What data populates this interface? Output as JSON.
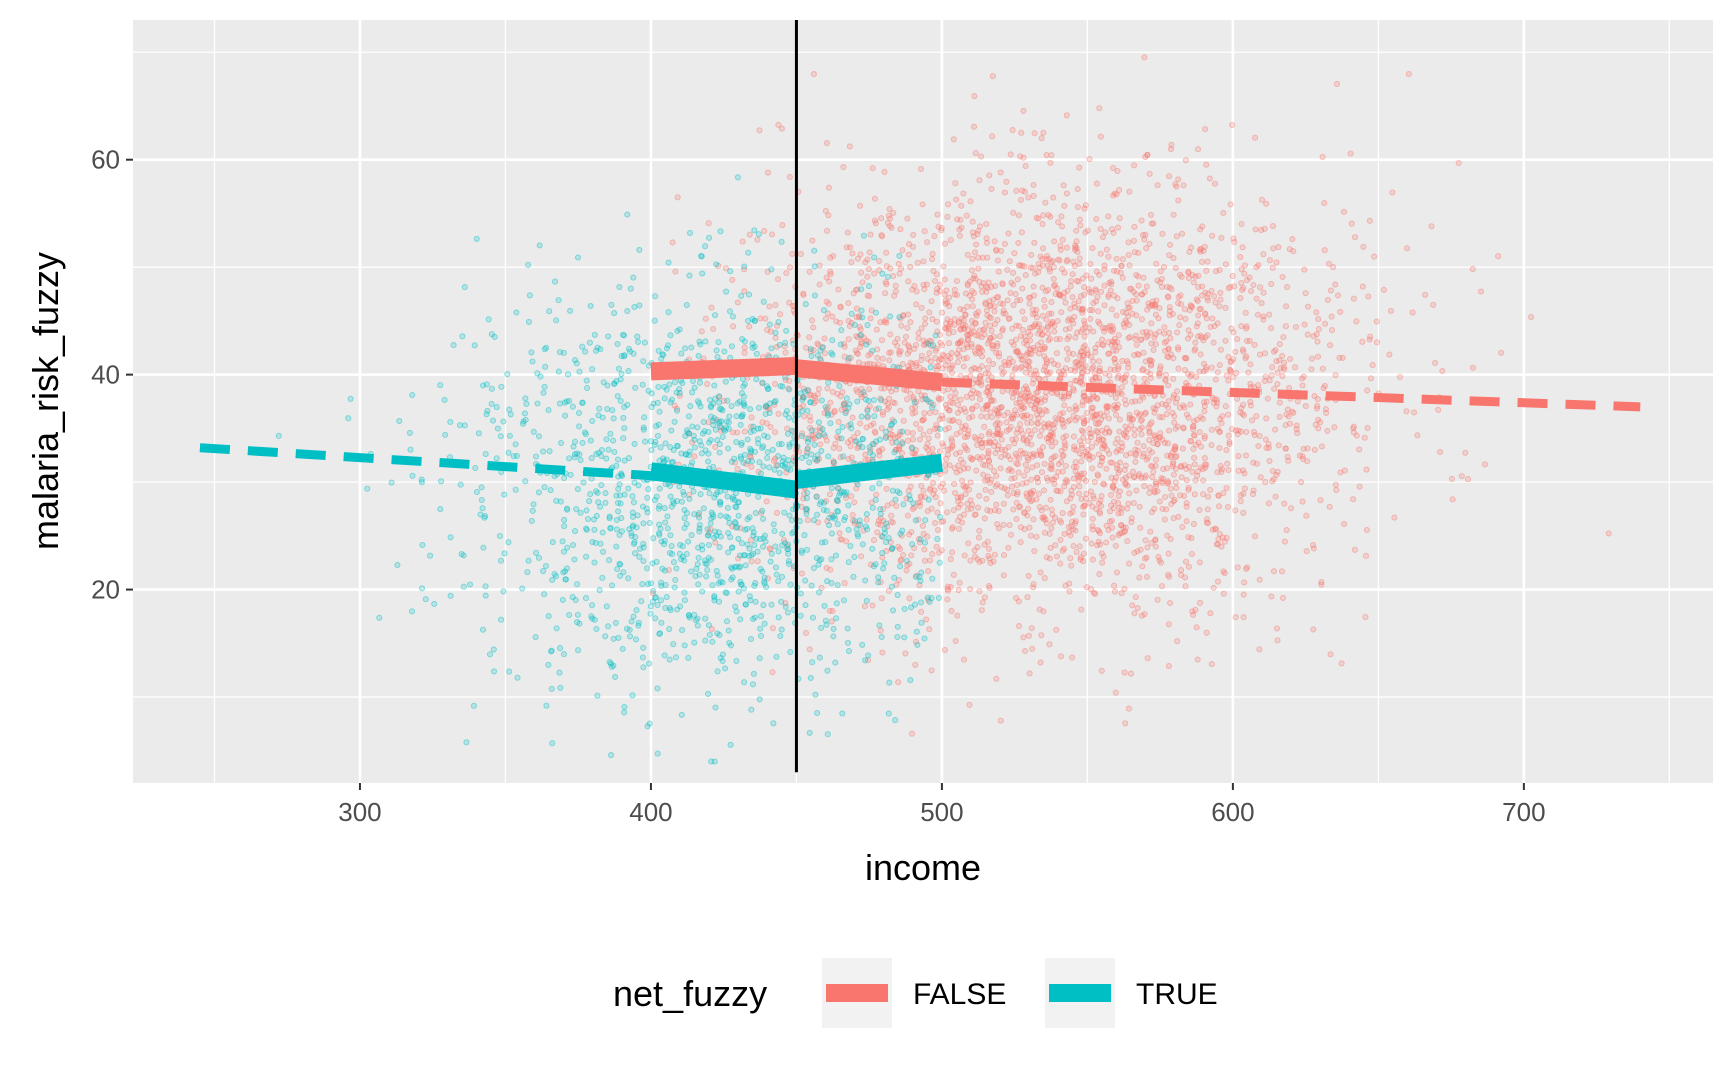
{
  "chart_data": {
    "type": "scatter",
    "xlabel": "income",
    "ylabel": "malaria_risk_fuzzy",
    "xlim": [
      222,
      765
    ],
    "ylim": [
      2,
      73
    ],
    "x_ticks": [
      300,
      400,
      500,
      600,
      700
    ],
    "x_tick_labels": [
      "300",
      "400",
      "500",
      "600",
      "700"
    ],
    "x_minor_ticks": [
      250,
      350,
      450,
      550,
      650,
      750
    ],
    "y_ticks": [
      20,
      40,
      60
    ],
    "y_tick_labels": [
      "20",
      "40",
      "60"
    ],
    "y_minor_ticks": [
      10,
      30,
      50,
      70
    ],
    "grid": true,
    "cutoff_x": 450,
    "legend": {
      "title": "net_fuzzy",
      "position": "bottom",
      "entries": [
        {
          "label": "FALSE",
          "color": "#F8766D"
        },
        {
          "label": "TRUE",
          "color": "#00BFC4"
        }
      ]
    },
    "series": [
      {
        "name": "FALSE",
        "color": "#F8766D",
        "point_cloud": {
          "x_mean": 535,
          "x_sd": 52,
          "x_min": 400,
          "x_max": 740,
          "y_mean": 38,
          "y_sd": 9.5,
          "count": 3400
        },
        "fit_solid": [
          {
            "x": [
              400,
              450
            ],
            "y": [
              40.3,
              40.8
            ]
          },
          {
            "x": [
              450,
              500
            ],
            "y": [
              40.6,
              39.3
            ]
          }
        ],
        "fit_dashed": {
          "x": [
            500,
            740
          ],
          "y": [
            39.3,
            37.0
          ]
        }
      },
      {
        "name": "TRUE",
        "color": "#00BFC4",
        "point_cloud": {
          "x_mean": 425,
          "x_sd": 45,
          "x_min": 245,
          "x_max": 500,
          "y_mean": 30,
          "y_sd": 9,
          "count": 1500
        },
        "fit_solid": [
          {
            "x": [
              400,
              450
            ],
            "y": [
              31.0,
              29.3
            ]
          },
          {
            "x": [
              450,
              500
            ],
            "y": [
              30.2,
              31.8
            ]
          }
        ],
        "fit_dashed": {
          "x": [
            245,
            400
          ],
          "y": [
            33.2,
            30.6
          ]
        }
      }
    ]
  }
}
